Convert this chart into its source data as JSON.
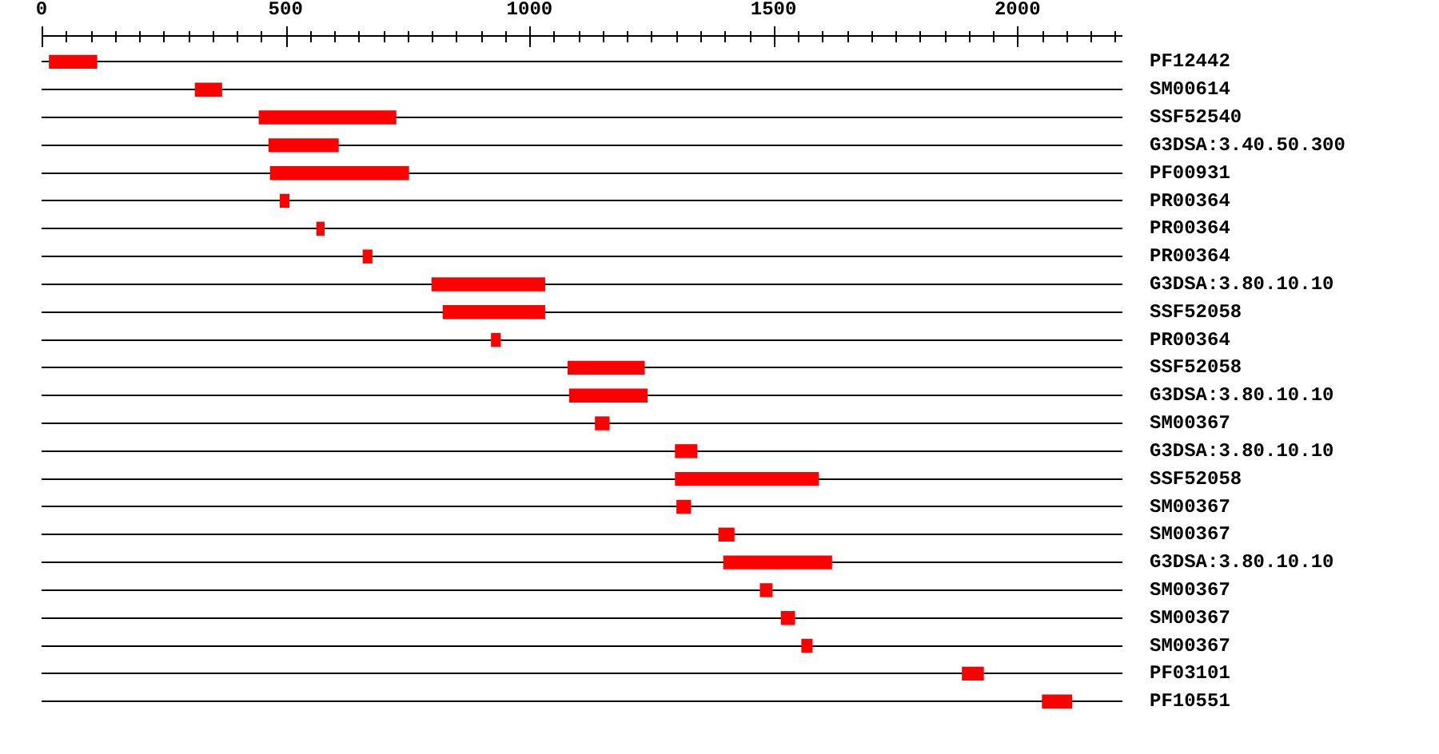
{
  "chart_data": {
    "type": "bar",
    "orientation": "horizontal",
    "categories": [
      "PF12442",
      "SM00614",
      "SSF52540",
      "G3DSA:3.40.50.300",
      "PF00931",
      "PR00364",
      "PR00364",
      "PR00364",
      "G3DSA:3.80.10.10",
      "SSF52058",
      "PR00364",
      "SSF52058",
      "G3DSA:3.80.10.10",
      "SM00367",
      "G3DSA:3.80.10.10",
      "SSF52058",
      "SM00367",
      "SM00367",
      "G3DSA:3.80.10.10",
      "SM00367",
      "SM00367",
      "SM00367",
      "PF03101",
      "PF10551"
    ],
    "base": [
      15,
      314,
      445,
      465,
      468,
      488,
      563,
      658,
      799,
      822,
      921,
      1078,
      1081,
      1134,
      1298,
      1298,
      1301,
      1387,
      1397,
      1472,
      1515,
      1557,
      1886,
      2050
    ],
    "values": [
      99,
      56,
      282,
      144,
      285,
      20,
      17,
      20,
      233,
      210,
      20,
      158,
      161,
      30,
      46,
      295,
      30,
      33,
      223,
      26,
      29,
      23,
      45,
      62
    ],
    "color": "#ff0000",
    "xlim": [
      0,
      2215
    ],
    "xticks": [
      0,
      {
        "value": 50,
        "label": null
      },
      {
        "value": 100,
        "label": null
      },
      {
        "value": 150,
        "label": null
      },
      {
        "value": 200,
        "label": null
      },
      {
        "value": 250,
        "label": null
      },
      {
        "value": 300,
        "label": null
      },
      {
        "value": 350,
        "label": null
      },
      {
        "value": 400,
        "label": null
      },
      {
        "value": 450,
        "label": null
      },
      500,
      {
        "value": 550,
        "label": null
      },
      {
        "value": 600,
        "label": null
      },
      {
        "value": 650,
        "label": null
      },
      {
        "value": 700,
        "label": null
      },
      {
        "value": 750,
        "label": null
      },
      {
        "value": 800,
        "label": null
      },
      {
        "value": 850,
        "label": null
      },
      {
        "value": 900,
        "label": null
      },
      {
        "value": 950,
        "label": null
      },
      1000,
      {
        "value": 1050,
        "label": null
      },
      {
        "value": 1100,
        "label": null
      },
      {
        "value": 1150,
        "label": null
      },
      {
        "value": 1200,
        "label": null
      },
      {
        "value": 1250,
        "label": null
      },
      {
        "value": 1300,
        "label": null
      },
      {
        "value": 1350,
        "label": null
      },
      {
        "value": 1400,
        "label": null
      },
      {
        "value": 1450,
        "label": null
      },
      1500,
      {
        "value": 1550,
        "label": null
      },
      {
        "value": 1600,
        "label": null
      },
      {
        "value": 1650,
        "label": null
      },
      {
        "value": 1700,
        "label": null
      },
      {
        "value": 1750,
        "label": null
      },
      {
        "value": 1800,
        "label": null
      },
      {
        "value": 1850,
        "label": null
      },
      {
        "value": 1900,
        "label": null
      },
      {
        "value": 1950,
        "label": null
      },
      2000,
      {
        "value": 2050,
        "label": null
      },
      {
        "value": 2100,
        "label": null
      },
      {
        "value": 2150,
        "label": null
      },
      {
        "value": 2200,
        "label": null
      }
    ],
    "grid": "y"
  }
}
